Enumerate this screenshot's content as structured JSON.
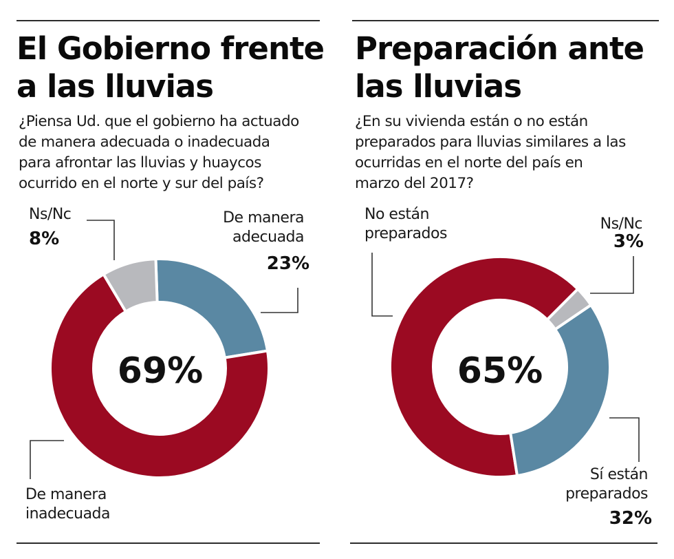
{
  "colors": {
    "red": "#9b0a22",
    "blue": "#5a88a3",
    "gray": "#b8b9bd",
    "text": "#111111"
  },
  "chart_data": [
    {
      "type": "pie",
      "variant": "donut",
      "title": "El Gobierno frente a las lluvias",
      "title_lines": [
        "El Gobierno frente",
        "a las lluvias"
      ],
      "question_lines": [
        "¿Piensa Ud. que el gobierno ha actuado",
        "de manera adecuada o inadecuada",
        "para afrontar las lluvias y huaycos",
        "ocurrido en el norte y sur del país?"
      ],
      "center_label": "69%",
      "slices": [
        {
          "key": "adecuada",
          "label_lines": [
            "De manera",
            "adecuada"
          ],
          "value": 23,
          "value_label": "23%",
          "color": "#5a88a3"
        },
        {
          "key": "inadecuada",
          "label_lines": [
            "De manera",
            "inadecuada"
          ],
          "value": 69,
          "value_label": "69%",
          "color": "#9b0a22"
        },
        {
          "key": "nsnc",
          "label_lines": [
            "Ns/Nc"
          ],
          "value": 8,
          "value_label": "8%",
          "color": "#b8b9bd"
        }
      ]
    },
    {
      "type": "pie",
      "variant": "donut",
      "title": "Preparación ante las lluvias",
      "title_lines": [
        "Preparación ante",
        "las lluvias"
      ],
      "question_lines": [
        "¿En su vivienda están o no están",
        "preparados para lluvias similares a las",
        "ocurridas en el norte del país en",
        "marzo del 2017?"
      ],
      "center_label": "65%",
      "slices": [
        {
          "key": "no_preparados",
          "label_lines": [
            "No están",
            "preparados"
          ],
          "value": 65,
          "value_label": "65%",
          "color": "#9b0a22"
        },
        {
          "key": "nsnc",
          "label_lines": [
            "Ns/Nc"
          ],
          "value": 3,
          "value_label": "3%",
          "color": "#b8b9bd"
        },
        {
          "key": "si_preparados",
          "label_lines": [
            "Sí están",
            "preparados"
          ],
          "value": 32,
          "value_label": "32%",
          "color": "#5a88a3"
        }
      ]
    }
  ]
}
